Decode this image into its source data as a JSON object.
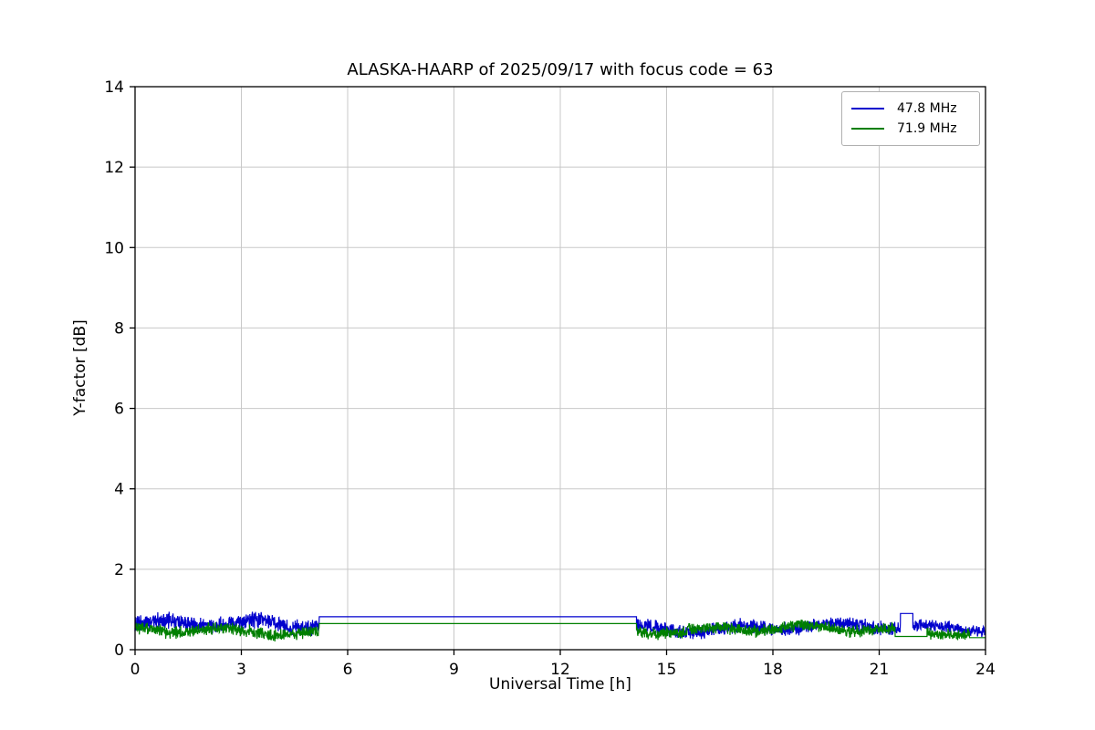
{
  "chart_data": {
    "type": "line",
    "title": "ALASKA-HAARP of 2025/09/17 with focus code = 63",
    "xlabel": "Universal Time [h]",
    "ylabel": "Y-factor [dB]",
    "xlim": [
      0,
      24
    ],
    "ylim": [
      0,
      14
    ],
    "xticks": [
      0,
      3,
      6,
      9,
      12,
      15,
      18,
      21,
      24
    ],
    "yticks": [
      0,
      2,
      4,
      6,
      8,
      10,
      12,
      14
    ],
    "grid": true,
    "legend_position": "upper right",
    "series": [
      {
        "name": "47.8 MHz",
        "color": "#0000cd",
        "segments": [
          {
            "type": "noisy",
            "x0": 0,
            "x1": 5.2,
            "mean": 0.62,
            "amp": 0.24
          },
          {
            "type": "flat",
            "x0": 5.2,
            "x1": 14.15,
            "value": 0.82
          },
          {
            "type": "noisy",
            "x0": 14.15,
            "x1": 21.6,
            "mean": 0.55,
            "amp": 0.21
          },
          {
            "type": "flat",
            "x0": 21.6,
            "x1": 21.95,
            "value": 0.9
          },
          {
            "type": "noisy",
            "x0": 21.95,
            "x1": 24,
            "mean": 0.55,
            "amp": 0.18
          }
        ]
      },
      {
        "name": "71.9 MHz",
        "color": "#007f00",
        "segments": [
          {
            "type": "noisy",
            "x0": 0,
            "x1": 5.2,
            "mean": 0.45,
            "amp": 0.19
          },
          {
            "type": "flat",
            "x0": 5.2,
            "x1": 14.15,
            "value": 0.65
          },
          {
            "type": "noisy",
            "x0": 14.15,
            "x1": 21.45,
            "mean": 0.5,
            "amp": 0.18
          },
          {
            "type": "flat",
            "x0": 21.45,
            "x1": 22.35,
            "value": 0.33
          },
          {
            "type": "noisy",
            "x0": 22.35,
            "x1": 23.55,
            "mean": 0.45,
            "amp": 0.16
          },
          {
            "type": "flat",
            "x0": 23.55,
            "x1": 24,
            "value": 0.3
          }
        ]
      }
    ]
  }
}
